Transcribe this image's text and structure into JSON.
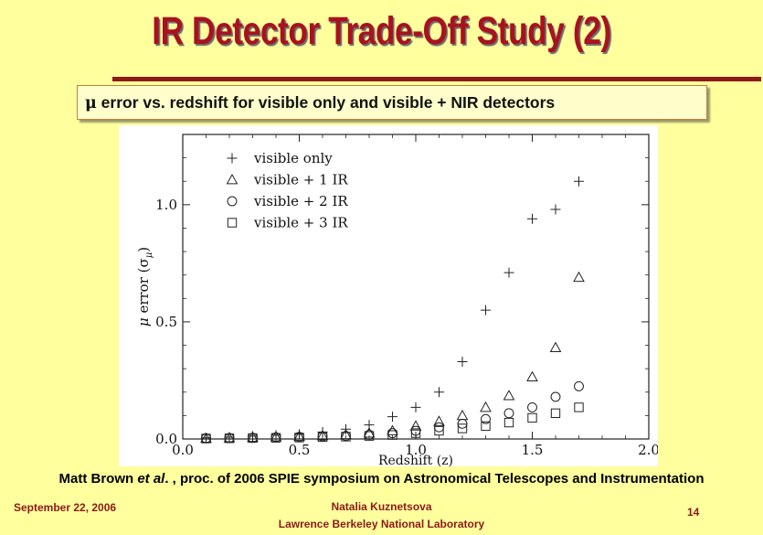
{
  "slide": {
    "title": "IR Detector Trade-Off Study (2)",
    "subtitle_prefix": "μ",
    "subtitle_text": " error vs. redshift for visible only and visible + NIR detectors",
    "citation_author": "Matt Brown ",
    "citation_etal": "et al",
    "citation_rest": ". , proc. of 2006 SPIE symposium on Astronomical Telescopes and Instrumentation",
    "footer_date": "September 22, 2006",
    "footer_author": "Natalia Kuznetsova",
    "footer_lab": "Lawrence Berkeley National Laboratory",
    "page_number": "14"
  },
  "colors": {
    "background": "#FFFF9E",
    "title": "#A8121E",
    "rule": "#8B1A1A",
    "footer": "#8B1A1A"
  },
  "chart_data": {
    "type": "scatter",
    "xlabel": "Redshift (z)",
    "ylabel_prefix": "μ",
    "ylabel_text": " error (σ",
    "ylabel_sub": "μ",
    "ylabel_close": ")",
    "xlim": [
      0.0,
      2.0
    ],
    "ylim": [
      0.0,
      1.3
    ],
    "xticks": [
      "0.0",
      "0.5",
      "1.0",
      "1.5",
      "2.0"
    ],
    "yticks": [
      "0.0",
      "0.5",
      "1.0"
    ],
    "legend_position": "top-left",
    "series": [
      {
        "name": "visible only",
        "marker": "plus",
        "x": [
          0.1,
          0.2,
          0.3,
          0.4,
          0.5,
          0.6,
          0.7,
          0.8,
          0.9,
          1.0,
          1.1,
          1.2,
          1.3,
          1.4,
          1.5,
          1.6,
          1.7
        ],
        "y": [
          0.005,
          0.008,
          0.012,
          0.016,
          0.02,
          0.03,
          0.042,
          0.06,
          0.095,
          0.135,
          0.2,
          0.33,
          0.55,
          0.71,
          0.94,
          0.98,
          1.1
        ]
      },
      {
        "name": "visible + 1 IR",
        "marker": "triangle",
        "x": [
          0.1,
          0.2,
          0.3,
          0.4,
          0.5,
          0.6,
          0.7,
          0.8,
          0.9,
          1.0,
          1.1,
          1.2,
          1.3,
          1.4,
          1.5,
          1.6,
          1.7
        ],
        "y": [
          0.003,
          0.005,
          0.007,
          0.009,
          0.011,
          0.014,
          0.018,
          0.025,
          0.035,
          0.055,
          0.075,
          0.1,
          0.135,
          0.185,
          0.265,
          0.39,
          0.69
        ]
      },
      {
        "name": "visible + 2 IR",
        "marker": "circle",
        "x": [
          0.1,
          0.2,
          0.3,
          0.4,
          0.5,
          0.6,
          0.7,
          0.8,
          0.9,
          1.0,
          1.1,
          1.2,
          1.3,
          1.4,
          1.5,
          1.6,
          1.7
        ],
        "y": [
          0.003,
          0.004,
          0.005,
          0.007,
          0.009,
          0.011,
          0.013,
          0.018,
          0.025,
          0.035,
          0.05,
          0.065,
          0.085,
          0.11,
          0.135,
          0.18,
          0.225
        ]
      },
      {
        "name": "visible + 3 IR",
        "marker": "square",
        "x": [
          0.1,
          0.2,
          0.3,
          0.4,
          0.5,
          0.6,
          0.7,
          0.8,
          0.9,
          1.0,
          1.1,
          1.2,
          1.3,
          1.4,
          1.5,
          1.6,
          1.7
        ],
        "y": [
          0.002,
          0.003,
          0.004,
          0.005,
          0.006,
          0.008,
          0.01,
          0.013,
          0.017,
          0.025,
          0.035,
          0.045,
          0.055,
          0.07,
          0.09,
          0.11,
          0.135
        ]
      }
    ]
  }
}
